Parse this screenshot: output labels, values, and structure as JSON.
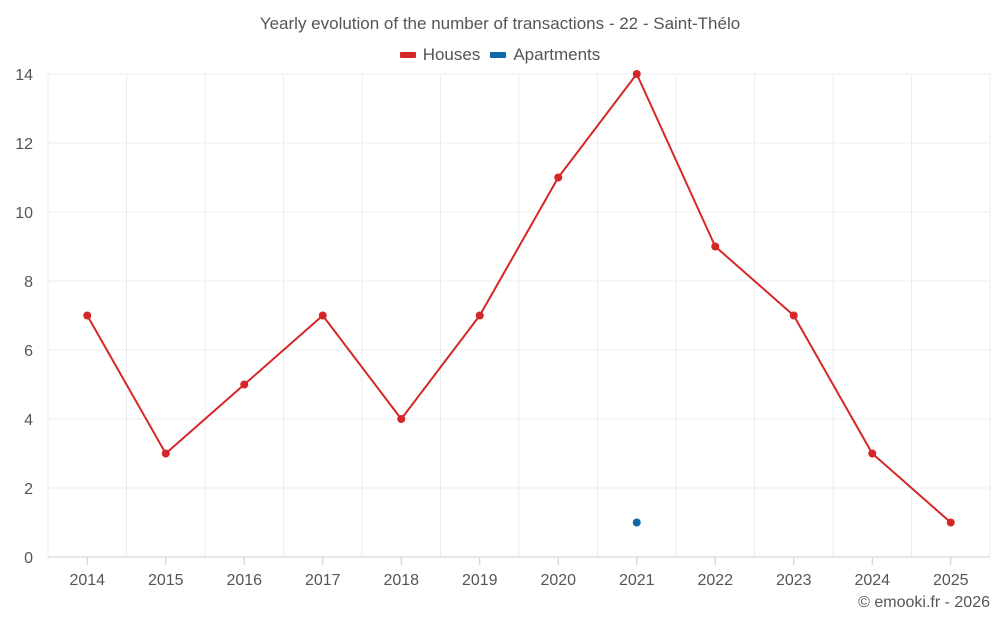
{
  "chart_data": {
    "type": "line",
    "title": "Yearly evolution of the number of transactions - 22 - Saint-Thélo",
    "xlabel": "",
    "ylabel": "",
    "categories": [
      "2014",
      "2015",
      "2016",
      "2017",
      "2018",
      "2019",
      "2020",
      "2021",
      "2022",
      "2023",
      "2024",
      "2025"
    ],
    "ylim": [
      0,
      14
    ],
    "yticks": [
      0,
      2,
      4,
      6,
      8,
      10,
      12,
      14
    ],
    "grid": true,
    "legend_position": "top-center",
    "series": [
      {
        "name": "Houses",
        "color": "#d62728",
        "values": [
          7,
          3,
          5,
          7,
          4,
          7,
          11,
          14,
          9,
          7,
          3,
          1
        ]
      },
      {
        "name": "Apartments",
        "color": "#0b6aa6",
        "values": [
          null,
          null,
          null,
          null,
          null,
          null,
          null,
          1,
          null,
          null,
          null,
          null
        ]
      }
    ]
  },
  "credit": "© emooki.fr - 2026"
}
